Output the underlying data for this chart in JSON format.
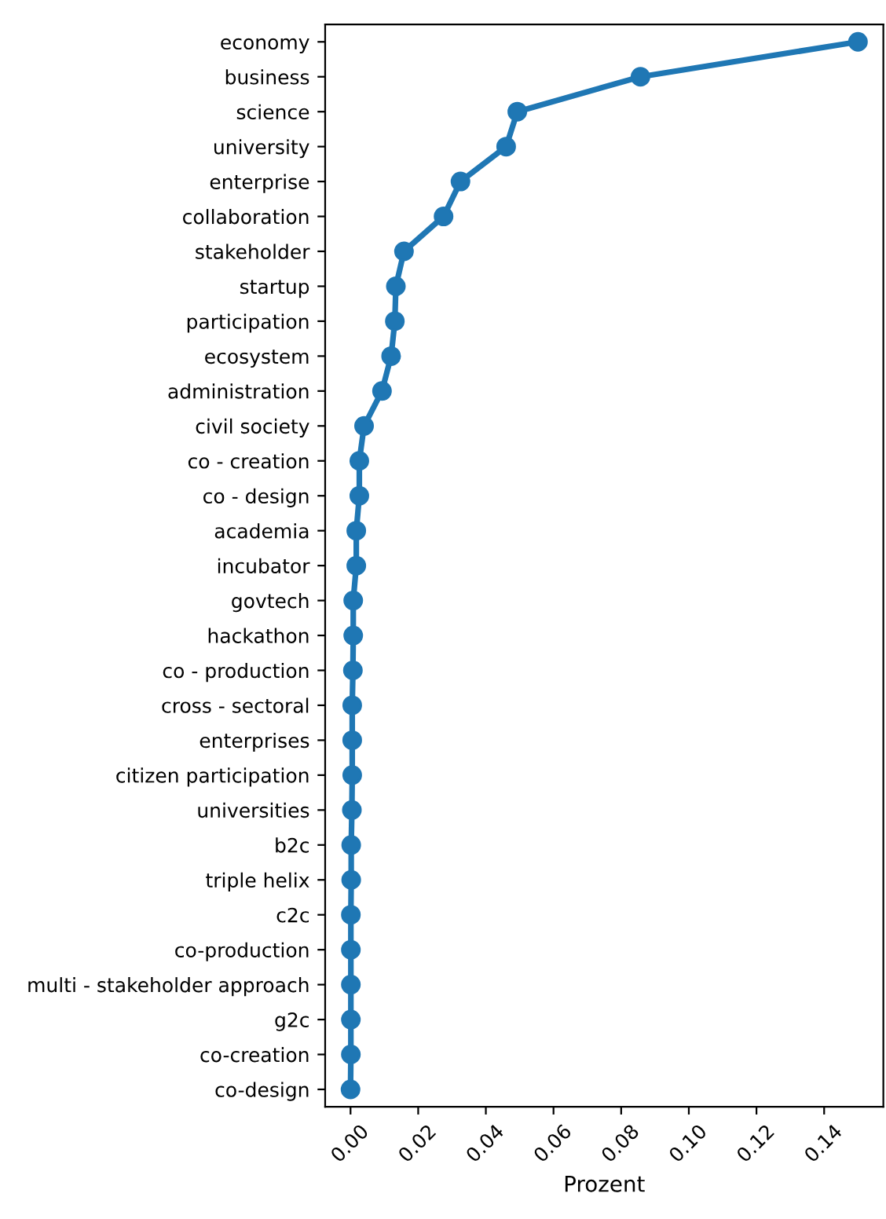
{
  "chart_data": {
    "type": "line",
    "orientation": "horizontal",
    "xlabel": "Prozent",
    "categories": [
      "economy",
      "business",
      "science",
      "university",
      "enterprise",
      "collaboration",
      "stakeholder",
      "startup",
      "participation",
      "ecosystem",
      "administration",
      "civil society",
      "co - creation",
      "co - design",
      "academia",
      "incubator",
      "govtech",
      "hackathon",
      "co - production",
      "cross - sectoral",
      "enterprises",
      "citizen participation",
      "universities",
      "b2c",
      "triple helix",
      "c2c",
      "co-production",
      "multi - stakeholder approach",
      "g2c",
      "co-creation",
      "co-design"
    ],
    "series": [
      {
        "color": "#1f77b4",
        "values": [
          0.15,
          0.0857,
          0.0493,
          0.046,
          0.0325,
          0.0275,
          0.0158,
          0.0134,
          0.0131,
          0.012,
          0.0093,
          0.004,
          0.0026,
          0.0026,
          0.0017,
          0.0017,
          0.0008,
          0.0008,
          0.0007,
          0.0005,
          0.0005,
          0.0005,
          0.0004,
          0.0002,
          0.0002,
          0.0001,
          0.0001,
          0.0001,
          0.0001,
          0.0001,
          0.0
        ]
      }
    ],
    "xlim": [
      -0.0075,
      0.1575
    ],
    "xticks": [
      {
        "value": 0,
        "label": "0.00"
      },
      {
        "value": 0.02,
        "label": "0.02"
      },
      {
        "value": 0.04,
        "label": "0.04"
      },
      {
        "value": 0.06,
        "label": "0.06"
      },
      {
        "value": 0.08,
        "label": "0.08"
      },
      {
        "value": 0.1,
        "label": "0.10"
      },
      {
        "value": 0.12,
        "label": "0.12"
      },
      {
        "value": 0.14,
        "label": "0.14"
      }
    ],
    "marker": "circle",
    "line_style": "solid",
    "grid": false
  }
}
